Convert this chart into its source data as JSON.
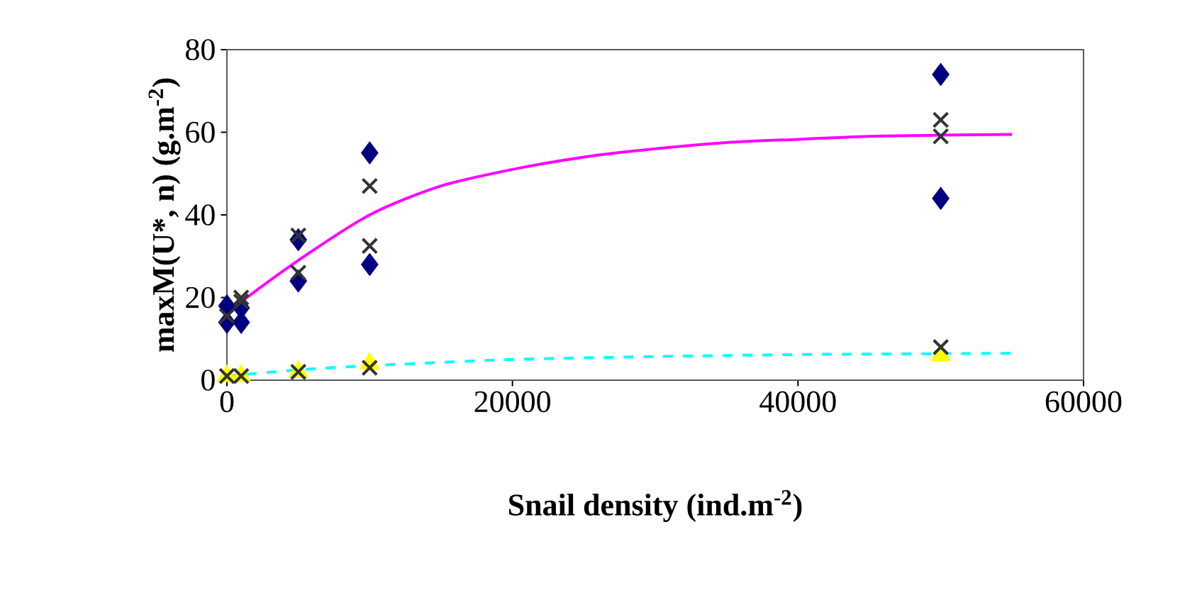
{
  "chart_data": {
    "type": "scatter",
    "xlabel": "Snail density (ind.m$^{-2}$)",
    "ylabel": "maxM(U*, n) (g.m$^{-2}$)",
    "xlim": [
      0,
      60000
    ],
    "ylim": [
      0,
      80
    ],
    "xticks": [
      0,
      20000,
      40000,
      60000
    ],
    "yticks": [
      0,
      20,
      40,
      60,
      80
    ],
    "grid": false,
    "series": [
      {
        "marker": "diamond",
        "color": "#000080",
        "x": [
          0,
          0,
          1000,
          1000,
          5000,
          5000,
          10000,
          10000,
          50000,
          50000
        ],
        "values": [
          18,
          14,
          17.5,
          14,
          34,
          24,
          55,
          28,
          74,
          44
        ]
      },
      {
        "marker": "cross",
        "color": "#333333",
        "x": [
          0,
          1000,
          1000,
          5000,
          5000,
          10000,
          10000,
          50000,
          50000
        ],
        "values": [
          15.5,
          19,
          20,
          35,
          26,
          47,
          32.5,
          63,
          59
        ]
      },
      {
        "marker": "triangle",
        "color": "#ffff00",
        "x": [
          0,
          1000,
          5000,
          10000,
          50000
        ],
        "values": [
          1,
          1,
          2,
          4,
          6
        ]
      },
      {
        "marker": "cross",
        "color": "#333333",
        "x": [
          0,
          1000,
          5000,
          10000,
          50000
        ],
        "values": [
          1,
          1,
          2,
          3,
          8
        ]
      },
      {
        "type": "line",
        "marker": "none",
        "line_style": "solid",
        "color": "#ff00ff",
        "x": [
          1000,
          5000,
          10000,
          15000,
          20000,
          25000,
          30000,
          35000,
          40000,
          45000,
          50000,
          55000
        ],
        "values": [
          19,
          29,
          40,
          47,
          51,
          54,
          56,
          57.5,
          58.3,
          59,
          59.3,
          59.5
        ]
      },
      {
        "type": "line",
        "marker": "none",
        "line_style": "dashed",
        "color": "#00ffff",
        "x": [
          0,
          5000,
          10000,
          20000,
          30000,
          40000,
          55000
        ],
        "values": [
          1,
          2.5,
          3.5,
          5,
          5.7,
          6.2,
          6.5
        ]
      }
    ]
  }
}
